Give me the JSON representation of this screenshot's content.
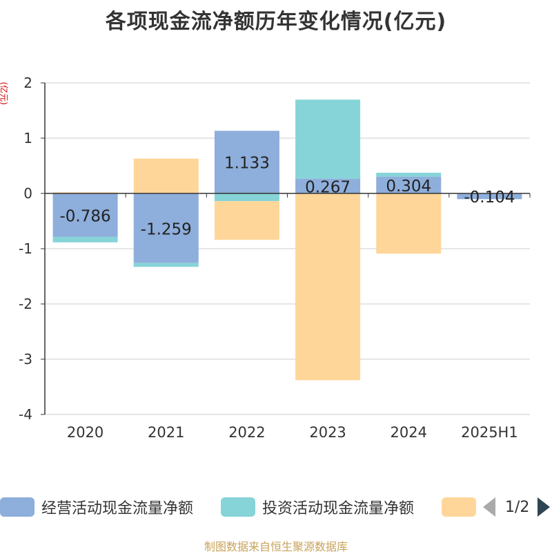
{
  "title": "各项现金流净额历年变化情况(亿元)",
  "source": "制图数据来自恒生聚源数据库",
  "legend": {
    "items": [
      {
        "label": "经营活动现金流量净额",
        "color": "#8eaedb"
      },
      {
        "label": "投资活动现金流量净额",
        "color": "#86d4d8"
      },
      {
        "label": "",
        "color": "#ffd699"
      }
    ],
    "page": "1/2"
  },
  "chart_data": {
    "type": "bar",
    "stacked": true,
    "categories": [
      "2020",
      "2021",
      "2022",
      "2023",
      "2024",
      "2025H1"
    ],
    "ylabel": "(亿元)",
    "ylim": [
      -4,
      2
    ],
    "yticks": [
      2,
      1,
      0,
      -1,
      -2,
      -3,
      -4
    ],
    "grid": true,
    "legend_position": "bottom",
    "series": [
      {
        "name": "经营活动现金流量净额",
        "color": "#8eaedb",
        "values": [
          -0.786,
          -1.259,
          1.133,
          0.267,
          0.304,
          -0.104
        ],
        "show_labels": true
      },
      {
        "name": "投资活动现金流量净额",
        "color": "#86d4d8",
        "values": [
          -0.1,
          -0.07,
          -0.14,
          1.43,
          0.07,
          0.0
        ],
        "show_labels": false
      },
      {
        "name": "",
        "color": "#ffd699",
        "values": [
          0.02,
          0.63,
          -0.7,
          -3.38,
          -1.09,
          0.0
        ],
        "show_labels": false
      }
    ],
    "data_labels": [
      "-0.786",
      "-1.259",
      "1.133",
      "0.267",
      "0.304",
      "-0.104"
    ]
  }
}
